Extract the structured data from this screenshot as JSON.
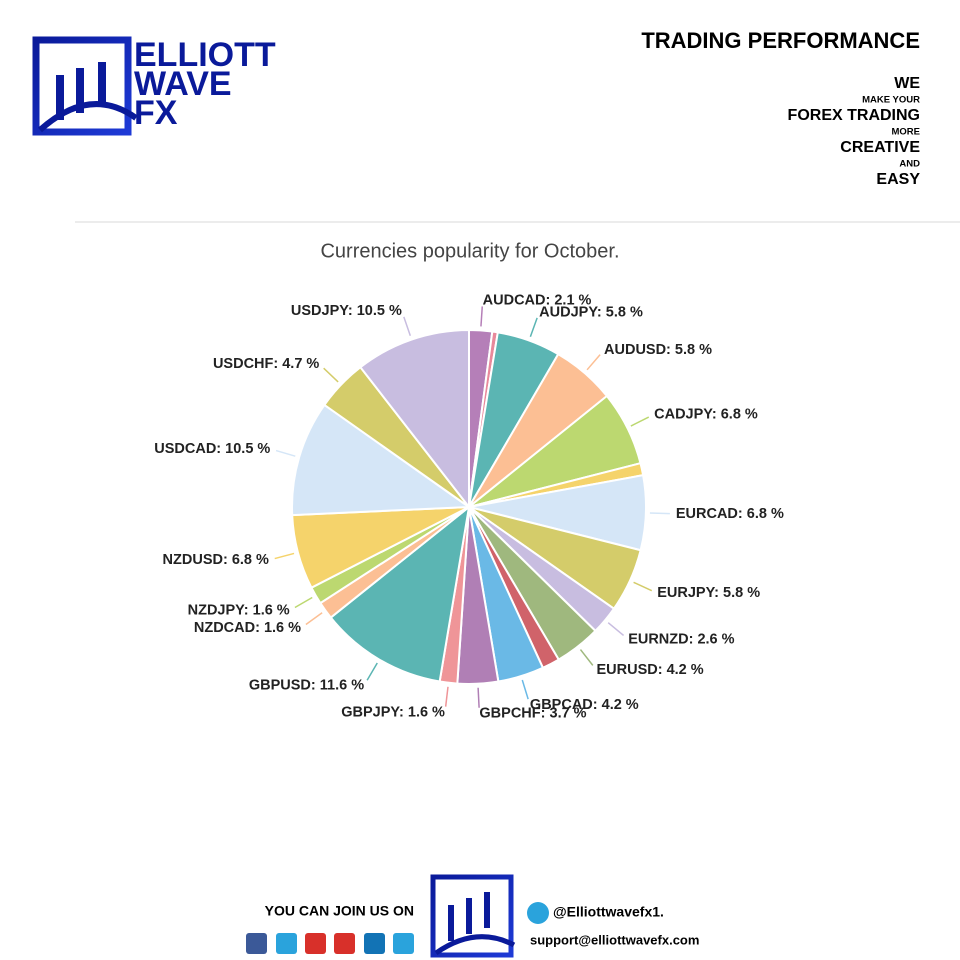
{
  "header": {
    "title": "TRADING PERFORMANCE",
    "logo": [
      "ELLIOTT",
      "WAVE",
      "FX"
    ],
    "tagline": [
      "WE",
      "MAKE YOUR",
      "FOREX TRADING",
      "MORE",
      "CREATIVE",
      "AND",
      "EASY"
    ]
  },
  "chart_data": {
    "type": "pie",
    "title": "Currencies popularity for October.",
    "categories": [
      "AUDCAD:",
      null,
      "AUDJPY:",
      "AUDUSD:",
      "CADJPY:",
      null,
      "EURCAD:",
      "EURJPY:",
      "EURNZD:",
      "EURUSD:",
      null,
      "GBPCAD:",
      "GBPCHF:",
      "GBPJPY:",
      "GBPUSD:",
      "NZDCAD:",
      "NZDJPY:",
      "NZDUSD:",
      "USDCAD:",
      "USDCHF:",
      "USDJPY:"
    ],
    "values": [
      2.1,
      0.5,
      5.8,
      5.8,
      6.8,
      1.1,
      6.8,
      5.8,
      2.6,
      4.2,
      1.6,
      4.2,
      3.7,
      1.6,
      11.6,
      1.6,
      1.6,
      6.8,
      10.5,
      4.7,
      10.5
    ],
    "value_labels": [
      "2.1 %",
      null,
      "5.8 %",
      "5.8 %",
      "6.8 %",
      null,
      "6.8 %",
      "5.8 %",
      "2.6 %",
      "4.2 %",
      null,
      "4.2 %",
      "3.7 %",
      "1.6 %",
      "11.6 %",
      "1.6 %",
      "1.6 %",
      "6.8 %",
      "10.5 %",
      "4.7 %",
      "10.5 %"
    ],
    "colors": [
      "#b57fb8",
      "#e8899b",
      "#5bb5b3",
      "#fcbf94",
      "#bcd870",
      "#f5d36b",
      "#d5e6f7",
      "#d4cc6a",
      "#c8bde0",
      "#9fb87e",
      "#d0636a",
      "#6ab9e6",
      "#b07fb5",
      "#ef9598",
      "#5bb5b3",
      "#fcbf94",
      "#bcd870",
      "#f5d36b",
      "#d5e6f7",
      "#d4cc6a",
      "#c8bde0"
    ]
  },
  "footer": {
    "join": "YOU CAN JOIN US ON",
    "telegram": "@Elliottwavefx1.",
    "email": "support@elliottwavefx.com"
  }
}
